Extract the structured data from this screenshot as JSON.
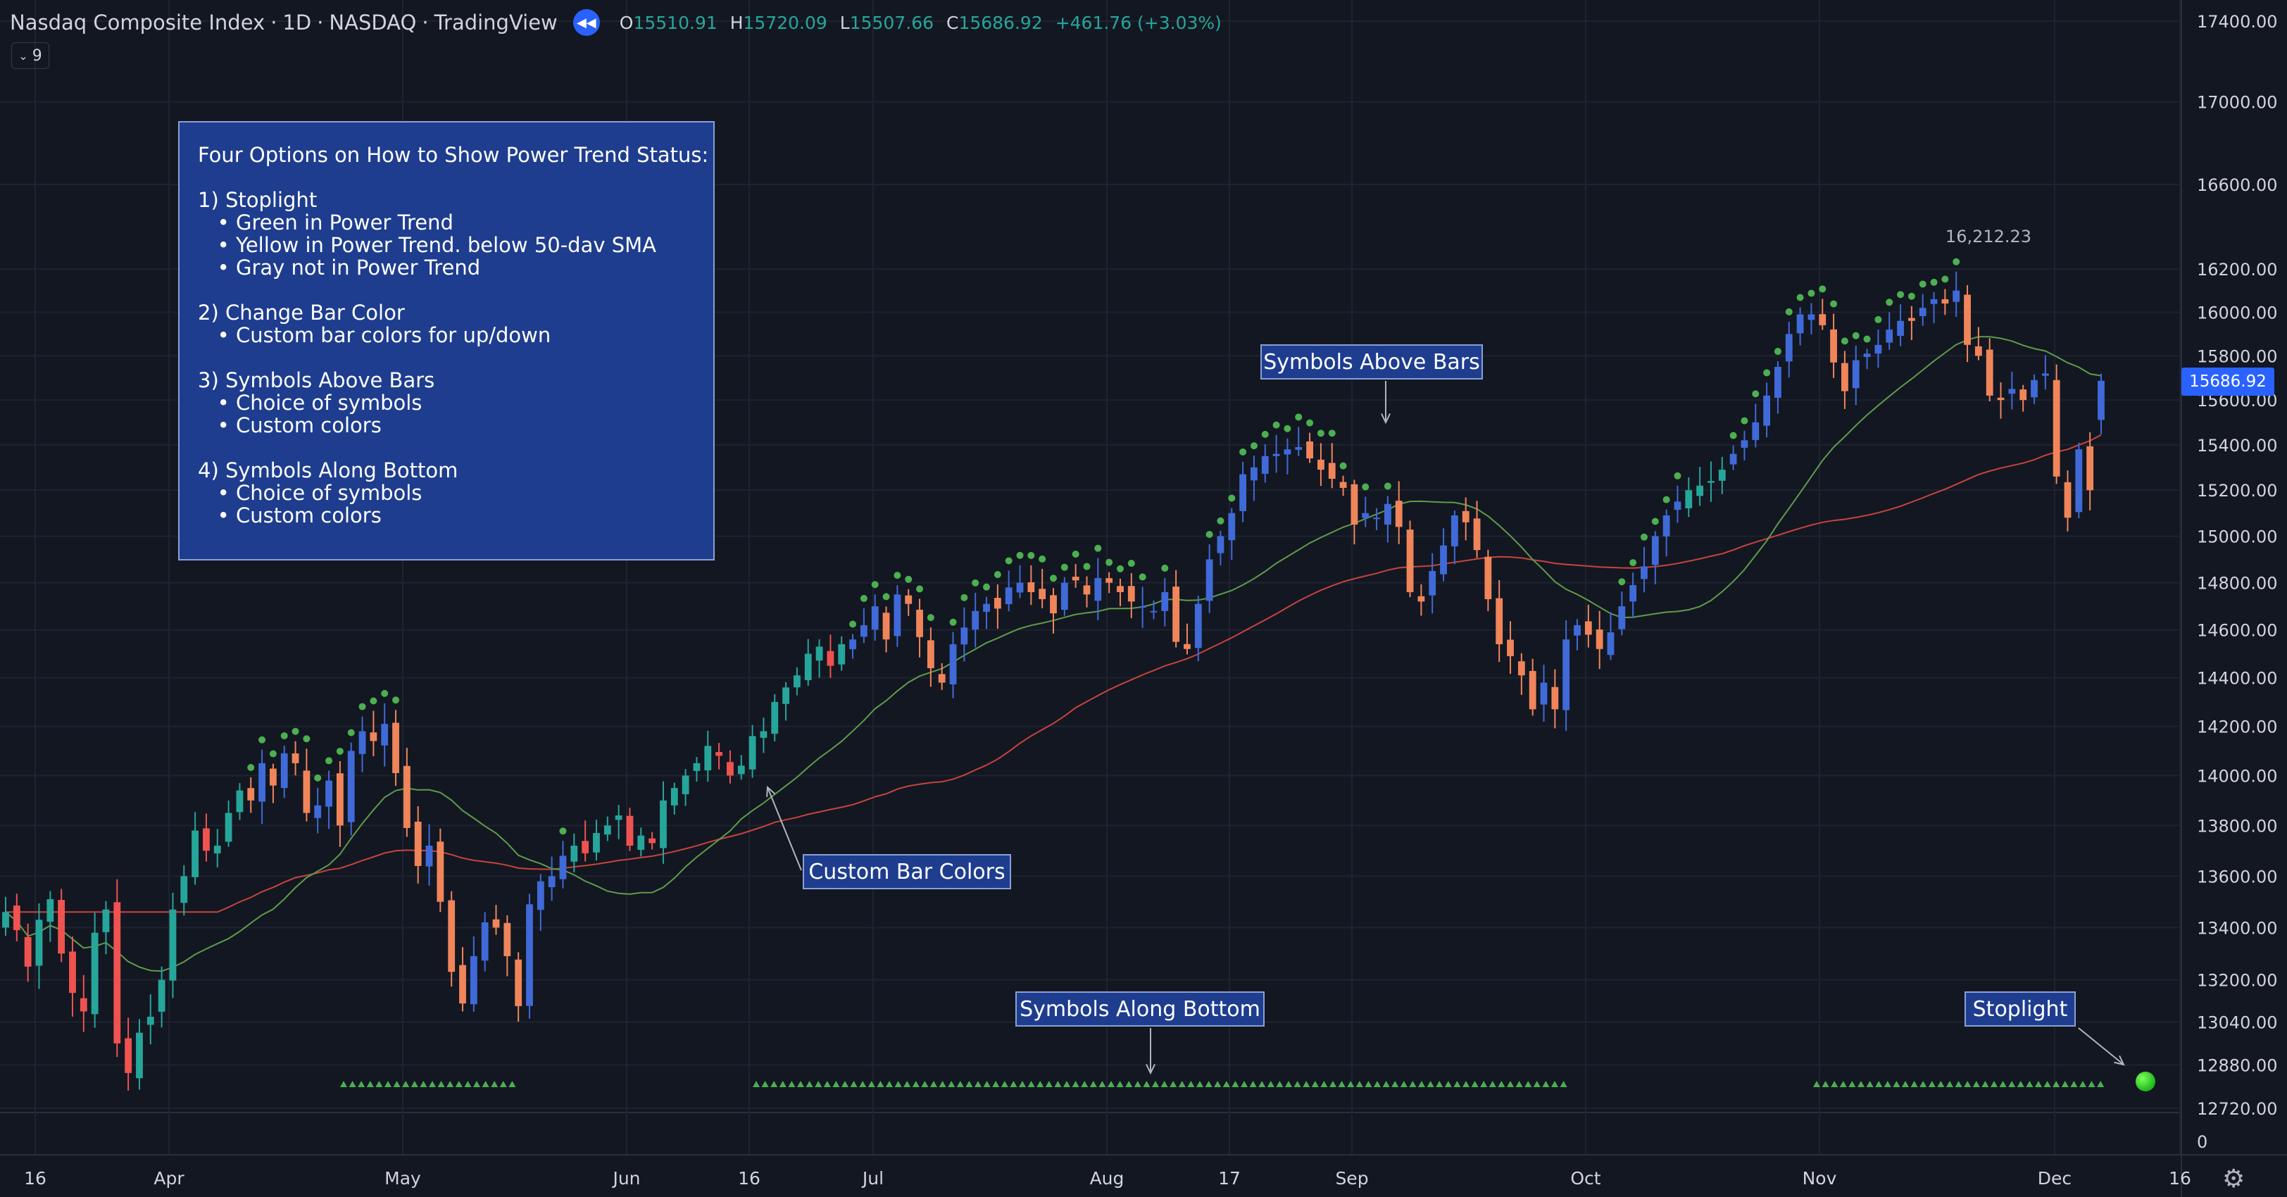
{
  "header": {
    "symbol": "Nasdaq Composite Index",
    "interval": "1D",
    "exchange": "NASDAQ",
    "source": "TradingView",
    "open_label": "O",
    "open": "15510.91",
    "high_label": "H",
    "high": "15720.09",
    "low_label": "L",
    "low": "15507.66",
    "close_label": "C",
    "close": "15686.92",
    "change": "+461.76 (+3.03%)",
    "indicator_count": "9"
  },
  "infobox": {
    "lines": [
      "Four Options on How to Show Power Trend Status:",
      "",
      "1) Stoplight",
      "   • Green in Power Trend",
      "   • Yellow in Power Trend. below 50-dav SMA",
      "   • Gray not in Power Trend",
      "",
      "2) Change Bar Color",
      "   • Custom bar colors for up/down",
      "",
      "3) Symbols Above Bars",
      "   • Choice of symbols",
      "   • Custom colors",
      "",
      "4) Symbols Along Bottom",
      "   • Choice of symbols",
      "   • Custom colors"
    ]
  },
  "callouts": {
    "above": "Symbols Above Bars",
    "custom": "Custom Bar Colors",
    "bottom": "Symbols Along Bottom",
    "stoplight": "Stoplight"
  },
  "price_scale_label": "15686.92",
  "peak_label": "16,212.23",
  "icons": {
    "replay": "replay-icon",
    "collapse": "chevron-down-icon",
    "settings": "gear-icon"
  },
  "colors": {
    "background": "#131722",
    "grid": "#1f2330",
    "up": "#3f6ad8",
    "down": "#f0855a",
    "neutral_up": "#26a69a",
    "neutral_down": "#ef5350",
    "sma_fast": "#5e9c4a",
    "sma_slow": "#c7443c",
    "symbol": "#4caf50",
    "accent": "#2962ff"
  },
  "chart_data": {
    "type": "candlestick",
    "title": "Nasdaq Composite Index",
    "price_scale": "log",
    "y_ticks": [
      12720,
      12880,
      13040,
      13200,
      13400,
      13600,
      13800,
      14000,
      14200,
      14400,
      14600,
      14800,
      15000,
      15200,
      15400,
      15600,
      15800,
      16000,
      16200,
      16600,
      17000,
      17400
    ],
    "y_tick_labels": [
      "12720.00",
      "12880.00",
      "13040.00",
      "13200.00",
      "13400.00",
      "13600.00",
      "13800.00",
      "14000.00",
      "14200.00",
      "14400.00",
      "14600.00",
      "14800.00",
      "15000.00",
      "15200.00",
      "15400.00",
      "15600.00",
      "15800.00",
      "16000.00",
      "16200.00",
      "16600.00",
      "17000.00",
      "17400.00"
    ],
    "x_labels": [
      "16",
      "Apr",
      "May",
      "Jun",
      "16",
      "Jul",
      "Aug",
      "17",
      "Sep",
      "Oct",
      "Nov",
      "Dec",
      "16"
    ],
    "volume_label": "0",
    "closes": [
      13460,
      13390,
      13250,
      13430,
      13510,
      13300,
      13150,
      13080,
      13380,
      13470,
      12960,
      12850,
      13000,
      13060,
      13200,
      13470,
      13600,
      13780,
      13700,
      13720,
      13850,
      13940,
      13900,
      14050,
      13960,
      14090,
      14050,
      13850,
      13880,
      13980,
      13800,
      14100,
      14180,
      14140,
      14210,
      14010,
      13790,
      13640,
      13720,
      13500,
      13230,
      13110,
      13290,
      13420,
      13400,
      13290,
      13100,
      13490,
      13580,
      13600,
      13680,
      13720,
      13690,
      13770,
      13800,
      13840,
      13720,
      13760,
      13730,
      13900,
      13950,
      14000,
      14050,
      14120,
      14080,
      14000,
      14040,
      14160,
      14180,
      14300,
      14360,
      14410,
      14500,
      14530,
      14450,
      14540,
      14560,
      14620,
      14700,
      14560,
      14750,
      14710,
      14570,
      14440,
      14380,
      14540,
      14610,
      14680,
      14710,
      14690,
      14780,
      14800,
      14760,
      14730,
      14670,
      14800,
      14810,
      14750,
      14820,
      14800,
      14760,
      14720,
      14700,
      14680,
      14760,
      14550,
      14520,
      14710,
      14900,
      15000,
      15100,
      15270,
      15300,
      15350,
      15360,
      15380,
      15390,
      15340,
      15290,
      15250,
      15210,
      15050,
      15100,
      15080,
      15140,
      15040,
      14760,
      14720,
      14850,
      14960,
      15090,
      15060,
      14940,
      14730,
      14540,
      14490,
      14410,
      14270,
      14380,
      14270,
      14560,
      14620,
      14580,
      14520,
      14590,
      14700,
      14790,
      14870,
      15000,
      15090,
      15150,
      15200,
      15220,
      15240,
      15290,
      15360,
      15420,
      15500,
      15620,
      15750,
      15900,
      15990,
      15990,
      15940,
      15770,
      15640,
      15780,
      15810,
      15850,
      15920,
      15960,
      15960,
      16020,
      16060,
      16040,
      16100,
      15850,
      15800,
      15620,
      15600,
      15650,
      15600,
      15690,
      15720,
      15260,
      15080,
      15380,
      15200,
      15686.92
    ],
    "sma_fast_approx": "20-day",
    "sma_slow": "50-day",
    "peak": 16212.23,
    "last_close": 15686.92
  }
}
